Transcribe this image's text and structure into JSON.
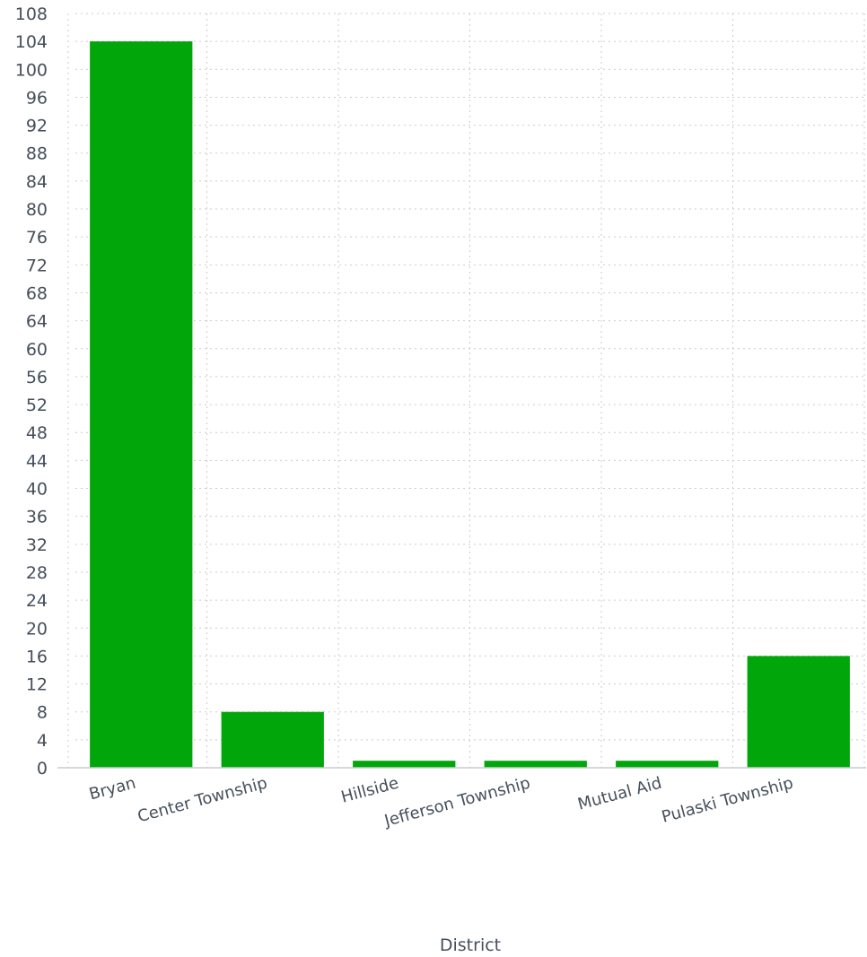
{
  "chart_data": {
    "type": "bar",
    "categories": [
      "Bryan",
      "Center Township",
      "Hillside",
      "Jefferson Township",
      "Mutual Aid",
      "Pulaski Township"
    ],
    "values": [
      104,
      8,
      1,
      1,
      1,
      16
    ],
    "xlabel": "District",
    "ylabel": "",
    "ylim": [
      0,
      108
    ],
    "ytick_step": 4,
    "grid": true,
    "bar_color": "#00a60a",
    "grid_color": "#c7ccd1",
    "axis_color": "#c7ccd1",
    "text_color": "#454f5b"
  }
}
